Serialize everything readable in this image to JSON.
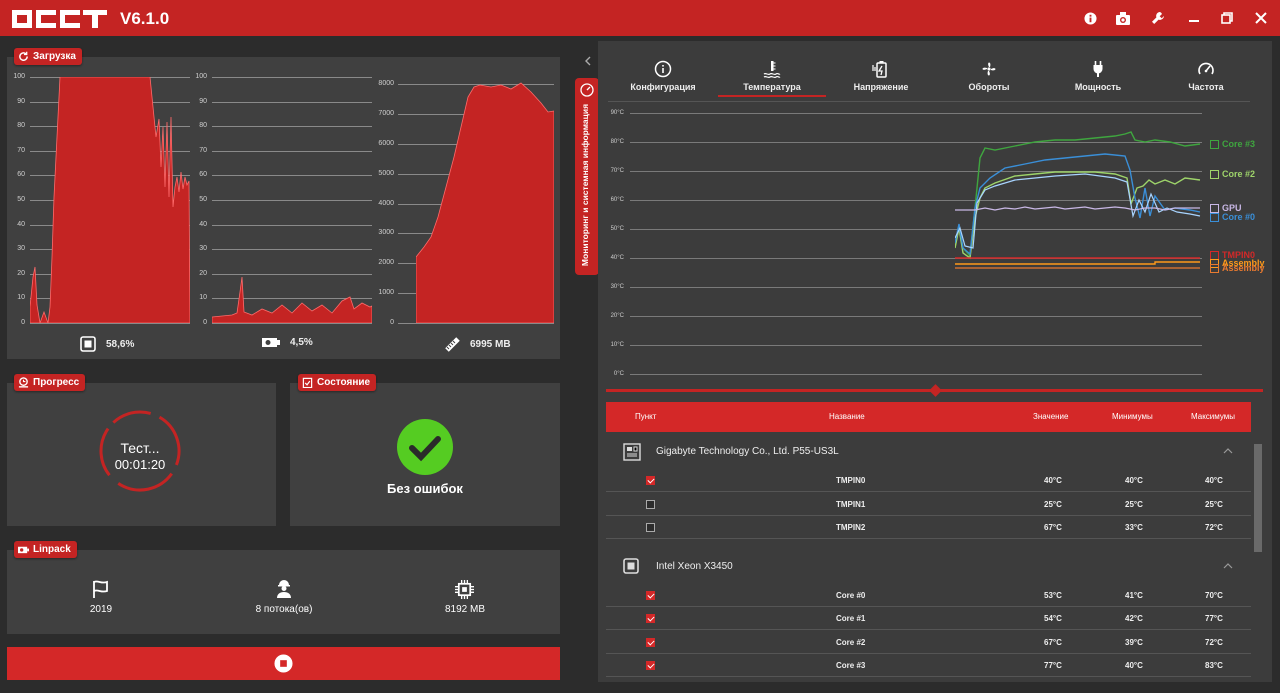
{
  "app": {
    "name": "OCCT",
    "version": "V6.1.0"
  },
  "titlebar_icons": [
    "info-icon",
    "camera-icon",
    "wrench-icon",
    "minimize-icon",
    "restore-icon",
    "close-icon"
  ],
  "accent_color": "#c42423",
  "load_panel": {
    "label": "Загрузка",
    "charts": [
      {
        "ticks": [
          "100",
          "90",
          "80",
          "70",
          "60",
          "50",
          "40",
          "30",
          "20",
          "10",
          "0"
        ],
        "footer": "58,6%",
        "footer_icon": "cpu-icon"
      },
      {
        "ticks": [
          "100",
          "90",
          "80",
          "70",
          "60",
          "50",
          "40",
          "30",
          "20",
          "10",
          "0"
        ],
        "footer": "4,5%",
        "footer_icon": "gpu-icon"
      },
      {
        "ticks": [
          "8000",
          "7000",
          "6000",
          "5000",
          "4000",
          "3000",
          "2000",
          "1000",
          "0"
        ],
        "footer": "6995 MB",
        "footer_icon": "memory-icon"
      }
    ]
  },
  "progress_panel": {
    "label": "Прогресс",
    "status": "Тест...",
    "time": "00:01:20"
  },
  "state_panel": {
    "label": "Состояние",
    "status": "Без ошибок"
  },
  "linpack_panel": {
    "label": "Linpack",
    "items": [
      {
        "icon": "flag-icon",
        "value": "2019"
      },
      {
        "icon": "worker-icon",
        "value": "8 потока(ов)"
      },
      {
        "icon": "chip-icon",
        "value": "8192 MB"
      }
    ]
  },
  "stop_button": {
    "icon": "stop-icon"
  },
  "side_tab": {
    "label": "Мониторинг и системная информация"
  },
  "monitor_tabs": [
    {
      "label": "Конфигурация",
      "icon": "info-icon"
    },
    {
      "label": "Температура",
      "icon": "thermometer-icon",
      "active": true
    },
    {
      "label": "Напряжение",
      "icon": "battery-icon"
    },
    {
      "label": "Обороты",
      "icon": "fan-icon"
    },
    {
      "label": "Мощность",
      "icon": "plug-icon"
    },
    {
      "label": "Частота",
      "icon": "gauge-icon"
    }
  ],
  "temp_chart": {
    "ticks": [
      "90°C",
      "80°C",
      "70°C",
      "60°C",
      "50°C",
      "40°C",
      "30°C",
      "20°C",
      "10°C",
      "0°C"
    ],
    "legend": [
      {
        "name": "Core #3",
        "color": "#3fa63f"
      },
      {
        "name": "Core #2",
        "color": "#9ed46a"
      },
      {
        "name": "GPU",
        "color": "#c9b8e6"
      },
      {
        "name": "Core #0",
        "color": "#3a8fd8"
      },
      {
        "name": "TMPIN0",
        "color": "#d42828"
      },
      {
        "name": "Assembly",
        "color": "#ff9a1a"
      },
      {
        "name": "Assembly",
        "color": "#e87a30"
      }
    ]
  },
  "table": {
    "headers": {
      "item": "Пункт",
      "name": "Название",
      "value": "Значение",
      "min": "Минимумы",
      "max": "Максимумы"
    },
    "groups": [
      {
        "title": "Gigabyte Technology Co., Ltd. P55-US3L",
        "icon": "motherboard-icon",
        "rows": [
          {
            "checked": true,
            "name": "TMPIN0",
            "value": "40°C",
            "min": "40°C",
            "max": "40°C"
          },
          {
            "checked": false,
            "name": "TMPIN1",
            "value": "25°C",
            "min": "25°C",
            "max": "25°C"
          },
          {
            "checked": false,
            "name": "TMPIN2",
            "value": "67°C",
            "min": "33°C",
            "max": "72°C"
          }
        ]
      },
      {
        "title": "Intel Xeon X3450",
        "icon": "cpu-icon",
        "rows": [
          {
            "checked": true,
            "name": "Core #0",
            "value": "53°C",
            "min": "41°C",
            "max": "70°C"
          },
          {
            "checked": true,
            "name": "Core #1",
            "value": "54°C",
            "min": "42°C",
            "max": "77°C"
          },
          {
            "checked": true,
            "name": "Core #2",
            "value": "67°C",
            "min": "39°C",
            "max": "72°C"
          },
          {
            "checked": true,
            "name": "Core #3",
            "value": "77°C",
            "min": "40°C",
            "max": "83°C"
          }
        ]
      }
    ]
  }
}
